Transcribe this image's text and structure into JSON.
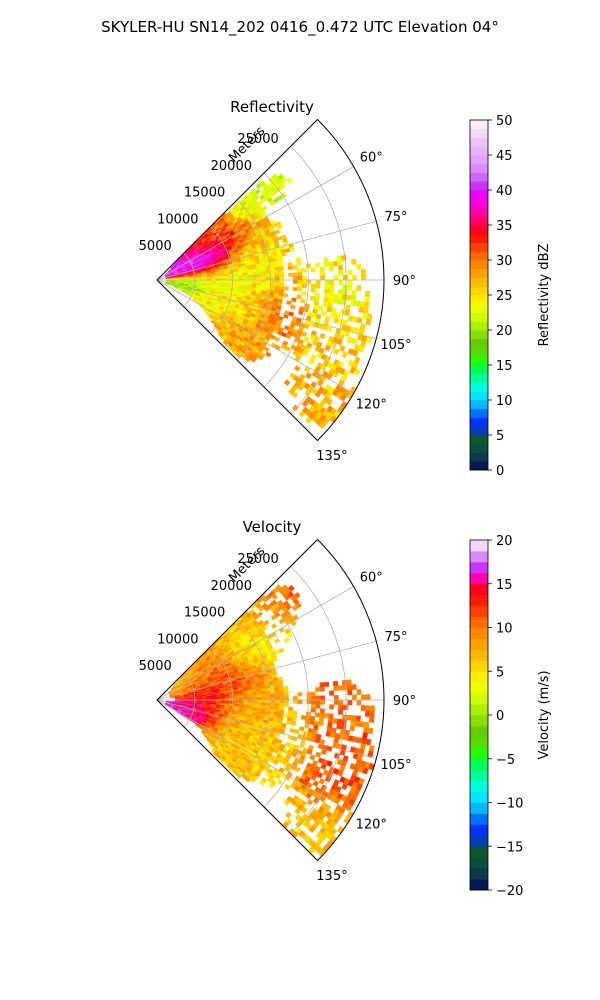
{
  "figure": {
    "suptitle": "SKYLER-HU  SN14_202  0416_0.472 UTC Elevation 04°"
  },
  "colors": {
    "grid": "#b0b0b0",
    "frame": "#000000"
  },
  "chart_data": [
    {
      "type": "heatmap",
      "subtype": "polar-sector",
      "title": "Reflectivity",
      "radial_axis_label": "Meters",
      "radial_ticks": [
        5000,
        10000,
        15000,
        20000,
        25000
      ],
      "radial_tick_labels": [
        "5000",
        "10000",
        "15000",
        "20000",
        "25000"
      ],
      "rlim": [
        0,
        30000
      ],
      "theta_ticks": [
        60,
        75,
        90,
        105,
        120,
        135
      ],
      "theta_tick_labels": [
        "60°",
        "75°",
        "90°",
        "105°",
        "120°",
        "135°"
      ],
      "theta_range": [
        45,
        135
      ],
      "colorbar": {
        "label": "Reflectivity dBZ",
        "range": [
          0,
          50
        ],
        "ticks": [
          0,
          5,
          10,
          15,
          20,
          25,
          30,
          35,
          40,
          45,
          50
        ],
        "tick_labels": [
          "0",
          "5",
          "10",
          "15",
          "20",
          "25",
          "30",
          "35",
          "40",
          "45",
          "50"
        ],
        "levels": 40,
        "colors": [
          "#041a58",
          "#0c3a4a",
          "#0a4f3c",
          "#0a5a2c",
          "#063db8",
          "#0033ff",
          "#0070ff",
          "#00b8ff",
          "#00e5ff",
          "#00ffdd",
          "#00ff99",
          "#00ff55",
          "#22ff00",
          "#55dd00",
          "#66cc00",
          "#88e000",
          "#aaf000",
          "#ccff00",
          "#eeff00",
          "#ffee00",
          "#ffd500",
          "#ffbb00",
          "#ffa000",
          "#ff8800",
          "#ff6a00",
          "#ff4000",
          "#ff1a00",
          "#ff0022",
          "#ff0066",
          "#ff00aa",
          "#ff00dd",
          "#ee00ff",
          "#cc33ff",
          "#cc66ff",
          "#dd88ff",
          "#e3a0ff",
          "#e8b0ff",
          "#ecc4f8",
          "#f4d8fb",
          "#f9ecfd"
        ]
      }
    },
    {
      "type": "heatmap",
      "subtype": "polar-sector",
      "title": "Velocity",
      "radial_axis_label": "Meters",
      "radial_ticks": [
        5000,
        10000,
        15000,
        20000,
        25000
      ],
      "radial_tick_labels": [
        "5000",
        "10000",
        "15000",
        "20000",
        "25000"
      ],
      "rlim": [
        0,
        30000
      ],
      "theta_ticks": [
        60,
        75,
        90,
        105,
        120,
        135
      ],
      "theta_tick_labels": [
        "60°",
        "75°",
        "90°",
        "105°",
        "120°",
        "135°"
      ],
      "theta_range": [
        45,
        135
      ],
      "colorbar": {
        "label": "Velocity (m/s)",
        "range": [
          -20,
          20
        ],
        "ticks": [
          -20,
          -15,
          -10,
          -5,
          0,
          5,
          10,
          15,
          20
        ],
        "tick_labels": [
          "−20",
          "−15",
          "−10",
          "−5",
          "0",
          "5",
          "10",
          "15",
          "20"
        ],
        "levels": 32,
        "colors": [
          "#041a58",
          "#0c3a4a",
          "#0a4f3c",
          "#0a5a2c",
          "#063db8",
          "#0033ff",
          "#0070ff",
          "#00b8ff",
          "#00e5ff",
          "#00ffdd",
          "#00ff99",
          "#00ff55",
          "#22ff00",
          "#55dd00",
          "#66cc00",
          "#88e000",
          "#aaf000",
          "#ccff00",
          "#eeff00",
          "#ffee00",
          "#ffd500",
          "#ffbb00",
          "#ffa000",
          "#ff8800",
          "#ff6a00",
          "#ff4000",
          "#ff1a00",
          "#ff0022",
          "#ff00aa",
          "#cc33ff",
          "#dd88ff",
          "#f4d8fb"
        ]
      }
    }
  ]
}
